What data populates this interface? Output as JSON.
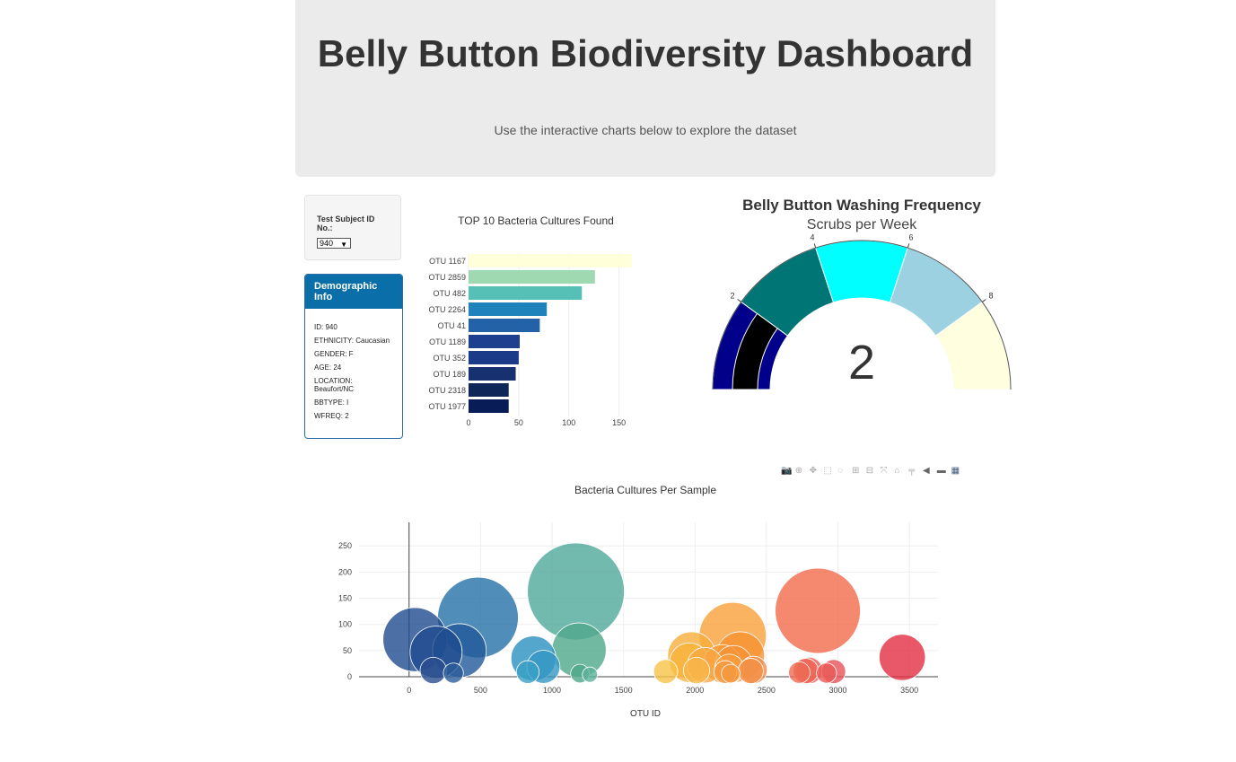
{
  "header": {
    "title": "Belly Button Biodiversity Dashboard",
    "subtitle": "Use the interactive charts below to explore the dataset"
  },
  "selector": {
    "label": "Test Subject ID No.:",
    "selected": "940"
  },
  "demographics": {
    "heading": "Demographic Info",
    "rows": [
      "ID: 940",
      "ETHNICITY: Caucasian",
      "GENDER: F",
      "AGE: 24",
      "LOCATION: Beaufort/NC",
      "BBTYPE: I",
      "WFREQ: 2"
    ]
  },
  "modebar_icons": [
    "camera-icon",
    "zoom-icon",
    "pan-icon",
    "box-select-icon",
    "lasso-icon",
    "zoom-in-icon",
    "zoom-out-icon",
    "autoscale-icon",
    "reset-axes-icon",
    "spike-lines-icon",
    "hover-closest-icon",
    "hover-compare-icon",
    "plotly-logo-icon"
  ],
  "chart_data": [
    {
      "type": "bar",
      "orientation": "horizontal",
      "title": "TOP 10 Bacteria Cultures Found",
      "categories": [
        "OTU 1167",
        "OTU 2859",
        "OTU 482",
        "OTU 2264",
        "OTU 41",
        "OTU 1189",
        "OTU 352",
        "OTU 189",
        "OTU 2318",
        "OTU 1977"
      ],
      "values": [
        163,
        126,
        113,
        78,
        71,
        51,
        50,
        47,
        40,
        40
      ],
      "colors": [
        "#ffffd9",
        "#9fd9b2",
        "#57c0b6",
        "#1d83ba",
        "#2362a6",
        "#1e3f8e",
        "#1b3a88",
        "#17306f",
        "#0f2658",
        "#081d58"
      ],
      "xticks": [
        0,
        50,
        100,
        150
      ],
      "xlim": [
        0,
        170
      ]
    },
    {
      "type": "gauge",
      "title": "Belly Button Washing Frequency",
      "subtitle": "Scrubs per Week",
      "value": 2,
      "range": [
        0,
        10
      ],
      "tick_labels": [
        "2",
        "4",
        "6",
        "8"
      ],
      "steps": [
        {
          "range": [
            0,
            2
          ],
          "color": "#00008b"
        },
        {
          "range": [
            2,
            4
          ],
          "color": "#007575"
        },
        {
          "range": [
            4,
            6
          ],
          "color": "#00ffff"
        },
        {
          "range": [
            6,
            8
          ],
          "color": "#9bd1e0"
        },
        {
          "range": [
            8,
            10
          ],
          "color": "#ffffe0"
        }
      ],
      "bar_color": "#000000"
    },
    {
      "type": "scatter",
      "mode": "bubble",
      "title": "Bacteria Cultures Per Sample",
      "xlabel": "OTU ID",
      "xticks": [
        0,
        500,
        1000,
        1500,
        2000,
        2500,
        3000,
        3500
      ],
      "yticks": [
        0,
        50,
        100,
        150,
        200,
        250
      ],
      "xlim": [
        -350,
        3700
      ],
      "ylim": [
        0,
        295
      ],
      "points": [
        {
          "x": 41,
          "y": 71,
          "c": "#1f4b8f"
        },
        {
          "x": 189,
          "y": 47,
          "c": "#1f4b8f"
        },
        {
          "x": 352,
          "y": 50,
          "c": "#21599a"
        },
        {
          "x": 482,
          "y": 113,
          "c": "#2671a8"
        },
        {
          "x": 169,
          "y": 12,
          "c": "#2a4e8e"
        },
        {
          "x": 310,
          "y": 7,
          "c": "#2a5c99"
        },
        {
          "x": 870,
          "y": 35,
          "c": "#2990c0"
        },
        {
          "x": 940,
          "y": 19,
          "c": "#3597c3"
        },
        {
          "x": 830,
          "y": 9,
          "c": "#3aa0c6"
        },
        {
          "x": 1167,
          "y": 163,
          "c": "#4fa89a"
        },
        {
          "x": 1189,
          "y": 51,
          "c": "#4fa88b"
        },
        {
          "x": 1195,
          "y": 6,
          "c": "#4fa88b"
        },
        {
          "x": 1265,
          "y": 4,
          "c": "#5cb39b"
        },
        {
          "x": 1795,
          "y": 10,
          "c": "#f7c34a"
        },
        {
          "x": 1977,
          "y": 40,
          "c": "#f8ad3b"
        },
        {
          "x": 1960,
          "y": 27,
          "c": "#f8b33b"
        },
        {
          "x": 2011,
          "y": 12,
          "c": "#f7b64a"
        },
        {
          "x": 2070,
          "y": 22,
          "c": "#f8a844"
        },
        {
          "x": 2264,
          "y": 78,
          "c": "#f9a038"
        },
        {
          "x": 2318,
          "y": 40,
          "c": "#f69231"
        },
        {
          "x": 2190,
          "y": 25,
          "c": "#f79837"
        },
        {
          "x": 2240,
          "y": 15,
          "c": "#f79e3d"
        },
        {
          "x": 2270,
          "y": 24,
          "c": "#f59137"
        },
        {
          "x": 2212,
          "y": 9,
          "c": "#f4983e"
        },
        {
          "x": 2250,
          "y": 6,
          "c": "#f4983e"
        },
        {
          "x": 2390,
          "y": 11,
          "c": "#f39147"
        },
        {
          "x": 2410,
          "y": 13,
          "c": "#f38c47"
        },
        {
          "x": 2859,
          "y": 126,
          "c": "#f36c4b"
        },
        {
          "x": 2730,
          "y": 8,
          "c": "#ef6a52"
        },
        {
          "x": 2775,
          "y": 11,
          "c": "#ed6452"
        },
        {
          "x": 2800,
          "y": 12,
          "c": "#ea5d52"
        },
        {
          "x": 2920,
          "y": 7,
          "c": "#ea5a55"
        },
        {
          "x": 2970,
          "y": 10,
          "c": "#e7525b"
        },
        {
          "x": 3450,
          "y": 37,
          "c": "#e22e44"
        }
      ]
    }
  ]
}
